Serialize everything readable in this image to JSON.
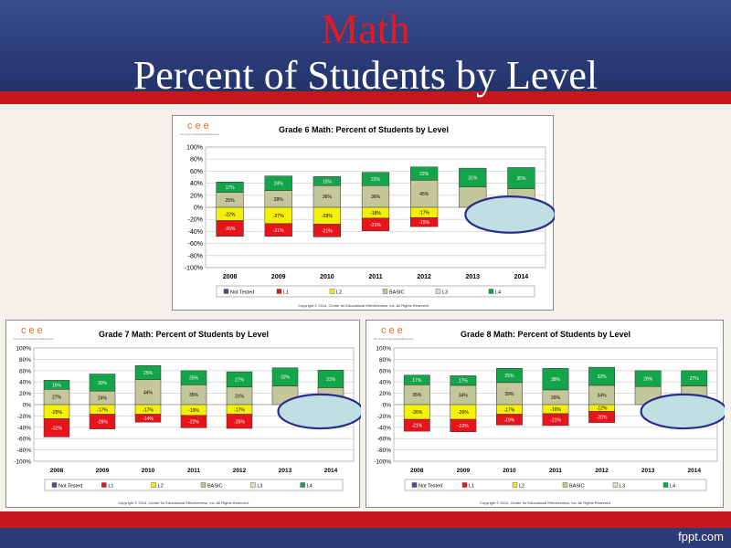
{
  "slide": {
    "title": "Math",
    "subtitle": "Percent of Students by Level",
    "brand": "fppt.com"
  },
  "logo_text": "cee",
  "logo_caption": "The Center for Educational Effectiveness",
  "copyright": "Copyright © 2014, Center for Educational Effectiveness, Inc.  All Rights Reserved.",
  "colors": {
    "not_tested": "#5a4a8a",
    "l1": "#e8141b",
    "l2": "#f5f00a",
    "basic": "#c3c79a",
    "l3": "#dde0c4",
    "l4": "#14a44a",
    "callout_fill": "#bfdfe3",
    "callout_stroke": "#2a2e8a"
  },
  "chart_data": [
    {
      "type": "bar",
      "title": "Grade 6 Math: Percent of Students by Level",
      "categories": [
        "2008",
        "2009",
        "2010",
        "2011",
        "2012",
        "2013",
        "2014"
      ],
      "yticks": [
        "100%",
        "80%",
        "60%",
        "40%",
        "20%",
        "0%",
        "-20%",
        "-40%",
        "-60%",
        "-80%",
        "-100%"
      ],
      "ylim": [
        -100,
        100
      ],
      "legend": [
        "Not Tested",
        "L1",
        "L2",
        "BASIC",
        "L3",
        "L4"
      ],
      "legend_position": "bottom",
      "series": [
        {
          "name": "L1",
          "values": [
            -26,
            -21,
            -21,
            -21,
            -15,
            null,
            null
          ]
        },
        {
          "name": "L2",
          "values": [
            -22,
            -27,
            -28,
            -18,
            -17,
            null,
            null
          ]
        },
        {
          "name": "BASIC",
          "values": [
            25,
            28,
            36,
            36,
            45,
            34,
            31
          ]
        },
        {
          "name": "L4",
          "values": [
            17,
            24,
            15,
            22,
            22,
            31,
            35
          ]
        }
      ],
      "labels_shown": {
        "L1": [
          "-26%",
          "-21%",
          "-21%",
          "-21%",
          "-15%",
          "",
          ""
        ],
        "L2": [
          "-22%",
          "-27%",
          "-28%",
          "-18%",
          "-17%",
          "",
          ""
        ],
        "BASIC": [
          "25%",
          "28%",
          "36%",
          "36%",
          "45%",
          "",
          ""
        ],
        "L4": [
          "17%",
          "24%",
          "15%",
          "22%",
          "22%",
          "31%",
          "35%"
        ]
      },
      "callout": true
    },
    {
      "type": "bar",
      "title": "Grade 7 Math: Percent of Students by Level",
      "categories": [
        "2008",
        "2009",
        "2010",
        "2011",
        "2012",
        "2013",
        "2014"
      ],
      "yticks": [
        "100%",
        "80%",
        "60%",
        "40%",
        "20%",
        "0%",
        "-20%",
        "-40%",
        "-60%",
        "-80%",
        "-100%"
      ],
      "ylim": [
        -100,
        100
      ],
      "legend": [
        "Not Tested",
        "L1",
        "L2",
        "BASIC",
        "L3",
        "L4"
      ],
      "legend_position": "bottom",
      "series": [
        {
          "name": "L1",
          "values": [
            -32,
            -26,
            -14,
            -22,
            -25,
            null,
            null
          ]
        },
        {
          "name": "L2",
          "values": [
            -25,
            -17,
            -17,
            -19,
            -17,
            null,
            null
          ]
        },
        {
          "name": "BASIC",
          "values": [
            27,
            24,
            44,
            35,
            31,
            33,
            30
          ]
        },
        {
          "name": "L4",
          "values": [
            16,
            30,
            25,
            25,
            27,
            32,
            31
          ]
        }
      ],
      "labels_shown": {
        "L1": [
          "-32%",
          "-26%",
          "-14%",
          "-22%",
          "-25%",
          "",
          ""
        ],
        "L2": [
          "-25%",
          "-17%",
          "-17%",
          "-19%",
          "-17%",
          "",
          ""
        ],
        "BASIC": [
          "27%",
          "24%",
          "44%",
          "35%",
          "31%",
          "",
          ""
        ],
        "L4": [
          "16%",
          "30%",
          "25%",
          "25%",
          "27%",
          "32%",
          "31%"
        ]
      },
      "callout": true
    },
    {
      "type": "bar",
      "title": "Grade 8 Math: Percent of Students by Level",
      "categories": [
        "2008",
        "2009",
        "2010",
        "2011",
        "2012",
        "2013",
        "2014"
      ],
      "yticks": [
        "100%",
        "80%",
        "60%",
        "40%",
        "20%",
        "0%",
        "-20%",
        "-40%",
        "-60%",
        "-80%",
        "-100%"
      ],
      "ylim": [
        -100,
        100
      ],
      "legend": [
        "Not Tested",
        "L1",
        "L2",
        "BASIC",
        "L3",
        "L4"
      ],
      "legend_position": "bottom",
      "series": [
        {
          "name": "L1",
          "values": [
            -21,
            -22,
            -19,
            -21,
            -20,
            null,
            null
          ]
        },
        {
          "name": "L2",
          "values": [
            -26,
            -26,
            -17,
            -16,
            -12,
            null,
            null
          ]
        },
        {
          "name": "BASIC",
          "values": [
            35,
            34,
            39,
            26,
            34,
            32,
            33
          ]
        },
        {
          "name": "L4",
          "values": [
            17,
            17,
            25,
            38,
            32,
            28,
            27
          ]
        }
      ],
      "labels_shown": {
        "L1": [
          "-21%",
          "-22%",
          "-19%",
          "-21%",
          "-20%",
          "",
          ""
        ],
        "L2": [
          "-26%",
          "-26%",
          "-17%",
          "-16%",
          "-12%",
          "",
          ""
        ],
        "BASIC": [
          "35%",
          "34%",
          "39%",
          "26%",
          "34%",
          "",
          ""
        ],
        "L4": [
          "17%",
          "17%",
          "25%",
          "38%",
          "32%",
          "28%",
          "27%"
        ]
      },
      "callout": true
    }
  ]
}
